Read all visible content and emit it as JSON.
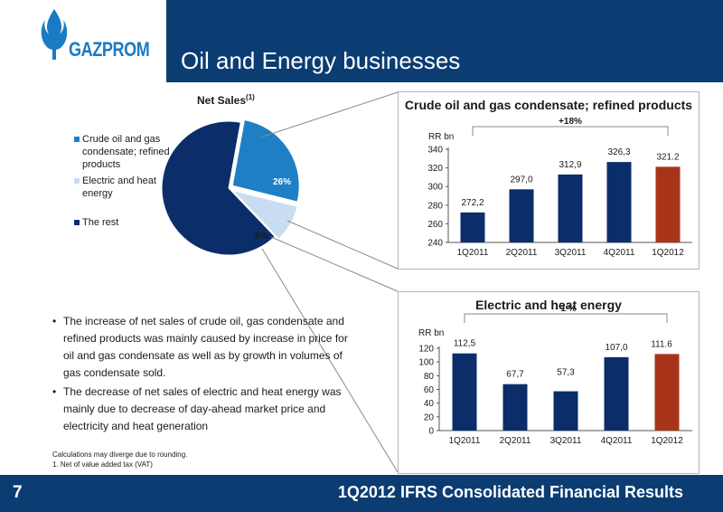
{
  "header": {
    "logo_text": "GAZPROM",
    "title": "Oil and Energy businesses",
    "brand_color": "#0b3d73",
    "logo_color": "#1a7bc4"
  },
  "pie": {
    "title": "Net Sales",
    "title_sup": "(1)",
    "legend": [
      {
        "label": "Crude oil and gas condensate; refined products",
        "color": "#1f7fc5"
      },
      {
        "label": "Electric and heat energy",
        "color": "#c9ddf2"
      },
      {
        "label": "The rest",
        "color": "#0b2e6b"
      }
    ],
    "labels": {
      "crude": "26%",
      "electric": "9%"
    }
  },
  "chart_data": [
    {
      "type": "pie",
      "title": "Net Sales",
      "categories": [
        "Crude oil and gas condensate; refined products",
        "Electric and heat energy",
        "The rest"
      ],
      "values": [
        26,
        9,
        65
      ],
      "colors": [
        "#1f7fc5",
        "#c9ddf2",
        "#0b2e6b"
      ]
    },
    {
      "type": "bar",
      "title": "Crude oil and gas condensate; refined products",
      "ylabel": "RR bn",
      "categories": [
        "1Q2011",
        "2Q2011",
        "3Q2011",
        "4Q2011",
        "1Q2012"
      ],
      "values": [
        272.2,
        297.0,
        312.9,
        326.3,
        321.2
      ],
      "value_labels": [
        "272,2",
        "297,0",
        "312,9",
        "326,3",
        "321.2"
      ],
      "colors": [
        "#0b2e6b",
        "#0b2e6b",
        "#0b2e6b",
        "#0b2e6b",
        "#a8341a"
      ],
      "ylim": [
        240,
        340
      ],
      "yticks": [
        240,
        260,
        280,
        300,
        320,
        340
      ],
      "annotation": "+18%"
    },
    {
      "type": "bar",
      "title": "Electric and heat energy",
      "ylabel": "RR bn",
      "categories": [
        "1Q2011",
        "2Q2011",
        "3Q2011",
        "4Q2011",
        "1Q2012"
      ],
      "values": [
        112.5,
        67.7,
        57.3,
        107.0,
        111.6
      ],
      "value_labels": [
        "112,5",
        "67,7",
        "57,3",
        "107,0",
        "111.6"
      ],
      "colors": [
        "#0b2e6b",
        "#0b2e6b",
        "#0b2e6b",
        "#0b2e6b",
        "#a8341a"
      ],
      "ylim": [
        0,
        120
      ],
      "yticks": [
        0,
        20,
        40,
        60,
        80,
        100,
        120
      ],
      "annotation": "- 1 %"
    }
  ],
  "bullets": [
    "The increase of net sales of crude oil, gas condensate and refined products was mainly caused by increase in price for oil and gas condensate as well as by growth in volumes of gas condensate sold.",
    "The decrease of net sales of electric and heat energy was mainly due to decrease of day-ahead market price and electricity and heat generation"
  ],
  "bullet_marker": "•",
  "footnotes": {
    "line1": "Calculations may diverge due to rounding.",
    "line2": "1. Net of value added tax (VAT)"
  },
  "footer": {
    "page_number": "7",
    "title": "1Q2012 IFRS Consolidated Financial Results"
  }
}
